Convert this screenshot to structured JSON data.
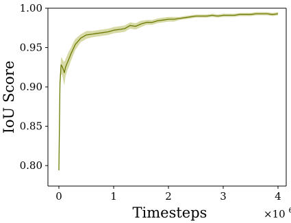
{
  "chart_data": {
    "type": "line",
    "title": "",
    "xlabel": "Timesteps",
    "ylabel": "IoU Score",
    "x_multiplier_label": "×10",
    "x_multiplier_exponent": "6",
    "xlim": [
      -0.2,
      4.15
    ],
    "ylim": [
      0.774,
      1.0
    ],
    "x_ticks": [
      0,
      1,
      2,
      3,
      4
    ],
    "x_tick_labels": [
      "0",
      "1",
      "2",
      "3",
      "4"
    ],
    "y_ticks": [
      0.8,
      0.85,
      0.9,
      0.95,
      1.0
    ],
    "y_tick_labels": [
      "0.80",
      "0.85",
      "0.90",
      "0.95",
      "1.00"
    ],
    "grid": false,
    "legend": "none",
    "series": [
      {
        "line_color": "#6b7a00",
        "band_color": "#c9cc8a",
        "x": [
          0.0,
          0.02,
          0.04,
          0.06,
          0.08,
          0.1,
          0.12,
          0.15,
          0.18,
          0.22,
          0.26,
          0.3,
          0.35,
          0.4,
          0.45,
          0.5,
          0.6,
          0.7,
          0.8,
          0.9,
          1.0,
          1.1,
          1.2,
          1.3,
          1.4,
          1.5,
          1.6,
          1.7,
          1.8,
          1.9,
          2.0,
          2.1,
          2.2,
          2.3,
          2.4,
          2.5,
          2.6,
          2.7,
          2.8,
          2.9,
          3.0,
          3.1,
          3.2,
          3.3,
          3.4,
          3.5,
          3.6,
          3.7,
          3.8,
          3.9,
          4.0
        ],
        "y": [
          0.794,
          0.905,
          0.928,
          0.926,
          0.922,
          0.918,
          0.925,
          0.93,
          0.935,
          0.942,
          0.948,
          0.954,
          0.958,
          0.962,
          0.964,
          0.966,
          0.967,
          0.968,
          0.969,
          0.97,
          0.972,
          0.973,
          0.974,
          0.978,
          0.977,
          0.98,
          0.982,
          0.982,
          0.984,
          0.985,
          0.986,
          0.986,
          0.987,
          0.988,
          0.989,
          0.99,
          0.99,
          0.99,
          0.991,
          0.99,
          0.991,
          0.991,
          0.991,
          0.992,
          0.992,
          0.992,
          0.993,
          0.993,
          0.993,
          0.992,
          0.993
        ],
        "lower": [
          0.784,
          0.895,
          0.915,
          0.916,
          0.908,
          0.902,
          0.913,
          0.92,
          0.925,
          0.933,
          0.94,
          0.947,
          0.952,
          0.957,
          0.959,
          0.961,
          0.963,
          0.964,
          0.965,
          0.966,
          0.968,
          0.969,
          0.97,
          0.974,
          0.973,
          0.976,
          0.979,
          0.979,
          0.981,
          0.982,
          0.983,
          0.983,
          0.985,
          0.986,
          0.987,
          0.988,
          0.988,
          0.988,
          0.989,
          0.988,
          0.989,
          0.989,
          0.989,
          0.99,
          0.99,
          0.99,
          0.991,
          0.991,
          0.991,
          0.99,
          0.991
        ],
        "upper": [
          0.804,
          0.915,
          0.938,
          0.936,
          0.933,
          0.932,
          0.935,
          0.94,
          0.945,
          0.95,
          0.956,
          0.961,
          0.964,
          0.967,
          0.969,
          0.971,
          0.971,
          0.972,
          0.973,
          0.974,
          0.976,
          0.977,
          0.978,
          0.982,
          0.981,
          0.984,
          0.985,
          0.985,
          0.987,
          0.988,
          0.989,
          0.989,
          0.989,
          0.99,
          0.991,
          0.992,
          0.992,
          0.992,
          0.993,
          0.992,
          0.993,
          0.993,
          0.993,
          0.994,
          0.994,
          0.994,
          0.995,
          0.995,
          0.995,
          0.994,
          0.995
        ]
      }
    ]
  }
}
